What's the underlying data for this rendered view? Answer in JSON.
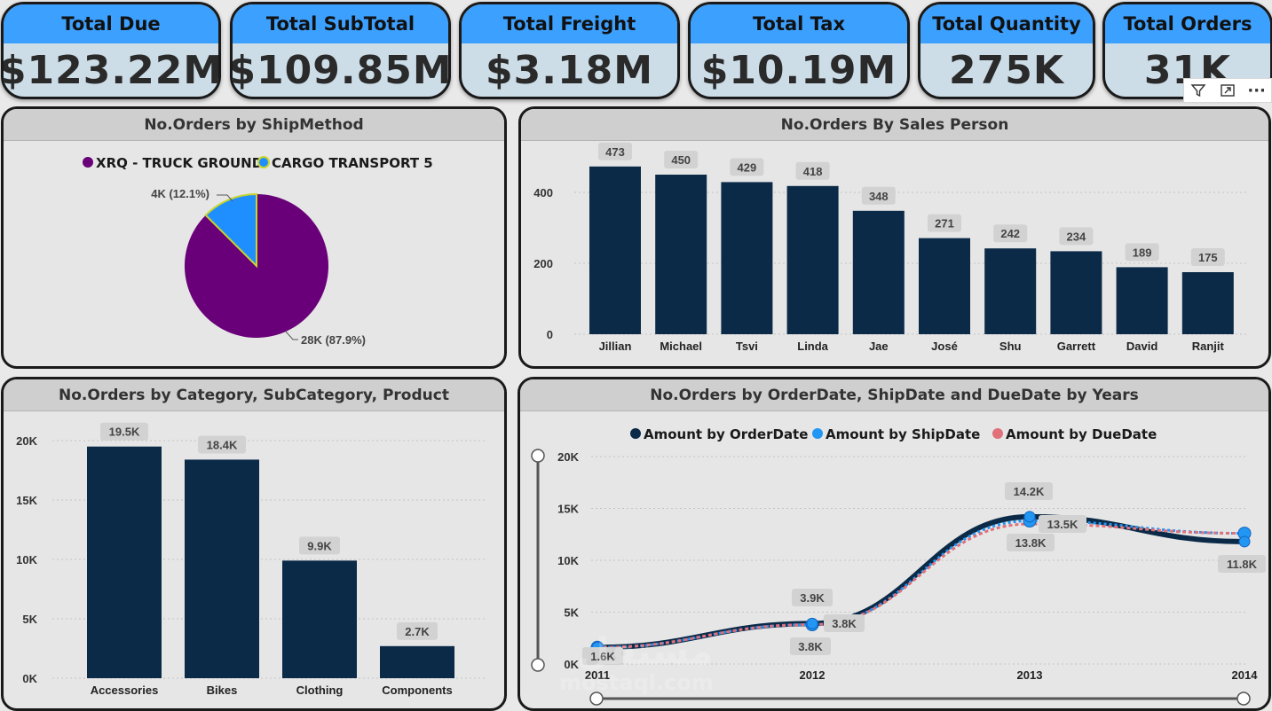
{
  "kpis": [
    {
      "title": "Total Due",
      "value": "$123.22M"
    },
    {
      "title": "Total SubTotal",
      "value": "$109.85M"
    },
    {
      "title": "Total Freight",
      "value": "$3.18M"
    },
    {
      "title": "Total Tax",
      "value": "$10.19M"
    },
    {
      "title": "Total Quantity",
      "value": "275K"
    },
    {
      "title": "Total Orders",
      "value": "31K"
    }
  ],
  "toolbar": {
    "icons": [
      "filter-icon",
      "focus-mode-icon",
      "more-options-icon"
    ],
    "more_label": "···"
  },
  "colors": {
    "kpi_header": "#3ca0ff",
    "bar": "#0b2a48",
    "pie_main": "#6a0079",
    "pie_secondary": "#1f8fff",
    "pie_secondary_border": "#c8d62a",
    "line_order": "#0b2a48",
    "line_ship": "#2196f3",
    "line_due": "#e0707a"
  },
  "watermark": {
    "arabic": "مستقل",
    "latin": "mostaql.com"
  },
  "panels": {
    "ship_method": {
      "title": "No.Orders by ShipMethod"
    },
    "sales_person": {
      "title": "No.Orders By Sales Person"
    },
    "category": {
      "title": "No.Orders by Category, SubCategory, Product"
    },
    "dates": {
      "title": "No.Orders by OrderDate, ShipDate and DueDate by Years"
    }
  },
  "chart_data": [
    {
      "type": "pie",
      "title": "No.Orders by ShipMethod",
      "categories": [
        "XRQ - TRUCK GROUND",
        "CARGO TRANSPORT 5"
      ],
      "values": [
        28000,
        4000
      ],
      "percent": [
        87.9,
        12.1
      ],
      "data_labels": [
        "28K (87.9%)",
        "4K (12.1%)"
      ],
      "legend": "top"
    },
    {
      "type": "bar",
      "title": "No.Orders By Sales Person",
      "categories": [
        "Jillian",
        "Michael",
        "Tsvi",
        "Linda",
        "Jae",
        "José",
        "Shu",
        "Garrett",
        "David",
        "Ranjit"
      ],
      "values": [
        473,
        450,
        429,
        418,
        348,
        271,
        242,
        234,
        189,
        175
      ],
      "data_labels": [
        "473",
        "450",
        "429",
        "418",
        "348",
        "271",
        "242",
        "234",
        "189",
        "175"
      ],
      "yticks": [
        "0",
        "200",
        "400"
      ],
      "ylim": [
        0,
        520
      ],
      "grid": true
    },
    {
      "type": "bar",
      "title": "No.Orders by Category, SubCategory, Product",
      "categories": [
        "Accessories",
        "Bikes",
        "Clothing",
        "Components"
      ],
      "values": [
        19500,
        18400,
        9900,
        2700
      ],
      "data_labels": [
        "19.5K",
        "18.4K",
        "9.9K",
        "2.7K"
      ],
      "yticks": [
        "0K",
        "5K",
        "10K",
        "15K",
        "20K"
      ],
      "ylim": [
        0,
        20000
      ],
      "grid": true
    },
    {
      "type": "line",
      "title": "No.Orders by OrderDate, ShipDate and DueDate by Years",
      "x": [
        "2011",
        "2012",
        "2013",
        "2014"
      ],
      "series": [
        {
          "name": "Amount by OrderDate",
          "values": [
            1600,
            3900,
            14200,
            11800
          ]
        },
        {
          "name": "Amount by ShipDate",
          "values": [
            1600,
            3800,
            13800,
            12600
          ]
        },
        {
          "name": "Amount by DueDate",
          "values": [
            1600,
            3800,
            13500,
            12600
          ]
        }
      ],
      "data_labels": [
        "1.6K",
        "3.9K",
        "3.8K",
        "3.8K",
        "14.2K",
        "13.8K",
        "13.5K",
        "11.8K"
      ],
      "yticks": [
        "0K",
        "5K",
        "10K",
        "15K",
        "20K"
      ],
      "ylim": [
        0,
        20000
      ],
      "legend": "top",
      "grid": true
    }
  ]
}
